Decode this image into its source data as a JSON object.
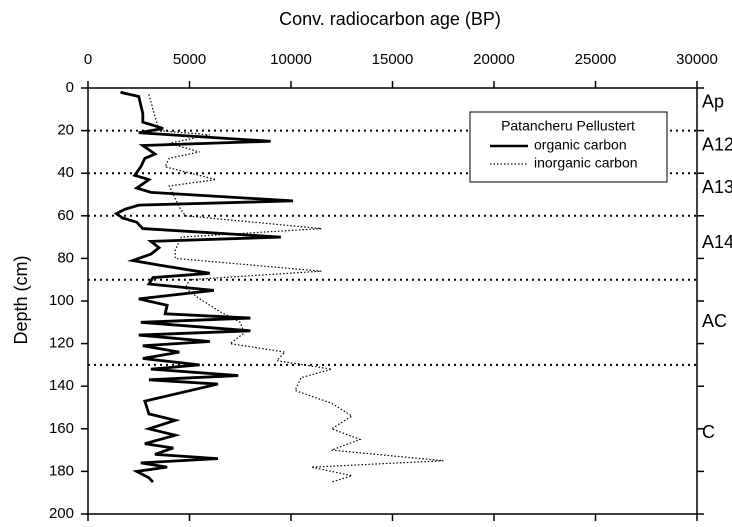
{
  "chart_data": {
    "type": "line",
    "x_label": "Conv. radiocarbon age (BP)",
    "y_label": "Depth (cm)",
    "xlim": [
      0,
      30000
    ],
    "xticks": [
      0,
      5000,
      10000,
      15000,
      20000,
      25000,
      30000
    ],
    "ylim": [
      0,
      200
    ],
    "yticks": [
      0,
      20,
      40,
      60,
      80,
      100,
      120,
      140,
      160,
      180,
      200
    ],
    "y_inverted": true,
    "legend_title": "Patancheru Pellustert",
    "legend_position": "upper right",
    "boundaries": [
      20,
      40,
      60,
      90,
      130
    ],
    "horizons": [
      {
        "label": "Ap",
        "depth": 7
      },
      {
        "label": "A12",
        "depth": 27
      },
      {
        "label": "A13",
        "depth": 47
      },
      {
        "label": "A14",
        "depth": 73
      },
      {
        "label": "AC",
        "depth": 110
      },
      {
        "label": "C",
        "depth": 162
      }
    ],
    "series": [
      {
        "name": "organic carbon",
        "color": "#000000",
        "style": "solid",
        "x": [
          1600,
          2500,
          2600,
          2700,
          2700,
          3700,
          2500,
          9000,
          2700,
          3300,
          2800,
          2600,
          2300,
          3000,
          2400,
          3100,
          10100,
          2500,
          1800,
          1400,
          1700,
          2400,
          2700,
          9500,
          3100,
          3500,
          3100,
          2200,
          3400,
          6000,
          3200,
          3000,
          6200,
          2500,
          3900,
          3800,
          8000,
          2600,
          8000,
          2500,
          6000,
          2700,
          4500,
          2700,
          5500,
          3100,
          7400,
          3000,
          6400,
          2800,
          3000,
          4300,
          3000,
          4300,
          2800,
          4200,
          3300,
          6400,
          2600,
          3900,
          2400,
          3000,
          3200
        ],
        "y": [
          2,
          4,
          8,
          12,
          16,
          19,
          21,
          25,
          27,
          31,
          33,
          37,
          41,
          43,
          47,
          49,
          53,
          55,
          57,
          59,
          61,
          63,
          66,
          70,
          72,
          75,
          78,
          81,
          83,
          87,
          89,
          92,
          95,
          99,
          102,
          106,
          108,
          110,
          114,
          116,
          119,
          121,
          124,
          127,
          130,
          132,
          135,
          137,
          139,
          147,
          153,
          156,
          160,
          163,
          167,
          169,
          172,
          174,
          176,
          178,
          180,
          183,
          185
        ]
      },
      {
        "name": "inorganic carbon",
        "color": "#000000",
        "style": "dotted",
        "x": [
          3000,
          3200,
          3500,
          6000,
          4000,
          5500,
          4000,
          3800,
          6300,
          4000,
          4500,
          4800,
          11500,
          4600,
          4300,
          4300,
          11500,
          5000,
          4800,
          5500,
          6500,
          7500,
          7700,
          7000,
          9700,
          9300,
          12000,
          10500,
          10200,
          12000,
          13000,
          12000,
          13400,
          12000,
          17500,
          11000,
          13000,
          12000
        ],
        "y": [
          3,
          10,
          20,
          22,
          26,
          30,
          33,
          37,
          43,
          46,
          56,
          60,
          66,
          70,
          76,
          80,
          86,
          90,
          94,
          99,
          105,
          110,
          115,
          120,
          124,
          128,
          132,
          136,
          142,
          148,
          154,
          160,
          165,
          170,
          175,
          178,
          182,
          185
        ]
      }
    ]
  }
}
